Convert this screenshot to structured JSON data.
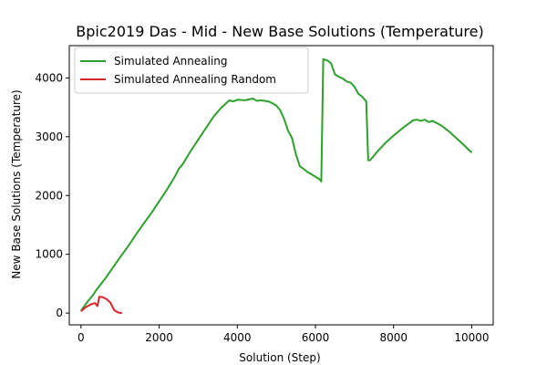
{
  "chart_data": {
    "type": "line",
    "title": "Bpic2019 Das - Mid - New Base Solutions (Temperature)",
    "xlabel": "Solution (Step)",
    "ylabel": "New Base Solutions (Temperature)",
    "xlim": [
      -300,
      10550
    ],
    "ylim": [
      -200,
      4550
    ],
    "xticks": [
      0,
      2000,
      4000,
      6000,
      8000,
      10000
    ],
    "yticks": [
      0,
      1000,
      2000,
      3000,
      4000
    ],
    "xtick_labels": [
      "0",
      "2000",
      "4000",
      "6000",
      "8000",
      "10000"
    ],
    "ytick_labels": [
      "0",
      "1000",
      "2000",
      "3000",
      "4000"
    ],
    "grid": false,
    "legend_position": "top-left",
    "series": [
      {
        "name": "Simulated Annealing",
        "color": "#2ca02c",
        "x": [
          0,
          150,
          300,
          400,
          600,
          800,
          1000,
          1200,
          1400,
          1600,
          1800,
          2000,
          2200,
          2400,
          2500,
          2600,
          2800,
          3000,
          3200,
          3400,
          3600,
          3800,
          3900,
          4000,
          4200,
          4400,
          4500,
          4600,
          4800,
          4900,
          5000,
          5100,
          5200,
          5300,
          5400,
          5500,
          5600,
          5800,
          6000,
          6100,
          6150,
          6200,
          6300,
          6400,
          6500,
          6600,
          6700,
          6800,
          6900,
          7000,
          7100,
          7200,
          7300,
          7350,
          7400,
          7500,
          7600,
          7800,
          8000,
          8200,
          8400,
          8500,
          8600,
          8700,
          8800,
          8900,
          9000,
          9200,
          9400,
          9600,
          9800,
          10000
        ],
        "y": [
          40,
          180,
          300,
          400,
          570,
          760,
          950,
          1130,
          1330,
          1520,
          1700,
          1900,
          2100,
          2320,
          2450,
          2530,
          2750,
          2950,
          3150,
          3350,
          3500,
          3620,
          3600,
          3630,
          3620,
          3650,
          3610,
          3620,
          3600,
          3570,
          3530,
          3450,
          3300,
          3100,
          2980,
          2700,
          2500,
          2400,
          2320,
          2280,
          2240,
          4320,
          4300,
          4250,
          4060,
          4020,
          3990,
          3940,
          3920,
          3850,
          3730,
          3680,
          3600,
          2600,
          2600,
          2680,
          2760,
          2900,
          3020,
          3130,
          3230,
          3280,
          3290,
          3270,
          3290,
          3250,
          3270,
          3200,
          3100,
          2980,
          2860,
          2730
        ]
      },
      {
        "name": "Simulated Annealing Random",
        "color": "#d62728",
        "x": [
          0,
          100,
          200,
          300,
          360,
          420,
          470,
          550,
          650,
          750,
          850,
          950,
          1050
        ],
        "y": [
          30,
          90,
          130,
          160,
          170,
          120,
          280,
          270,
          240,
          180,
          50,
          10,
          0
        ]
      }
    ]
  }
}
